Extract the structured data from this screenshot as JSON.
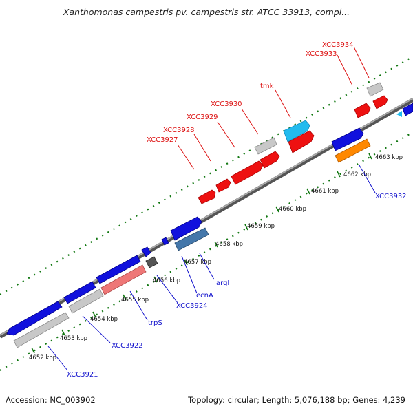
{
  "title": "Xanthomonas campestris pv. campestris str. ATCC 33913, compl...",
  "accession": "Accession: NC_003902",
  "summary": "Topology: circular; Length: 5,076,188 bp; Genes: 4,239",
  "ruler": {
    "unit": "kbp",
    "ticks": [
      "4652 kbp",
      "4653 kbp",
      "4654 kbp",
      "4655 kbp",
      "4656 kbp",
      "4657 kbp",
      "4658 kbp",
      "4659 kbp",
      "4660 kbp",
      "4661 kbp",
      "4662 kbp",
      "4663 kbp"
    ]
  },
  "genes_forward": [
    {
      "label": "XCC3927",
      "color": "#ee1111"
    },
    {
      "label": "XCC3928",
      "color": "#ee1111"
    },
    {
      "label": "XCC3929",
      "color": "#ee1111"
    },
    {
      "label": "XCC3930",
      "color": "#bbbbbb"
    },
    {
      "label": "tmk",
      "color": "#ee1111"
    },
    {
      "label": "XCC3933",
      "color": "#ee1111"
    },
    {
      "label": "XCC3934",
      "color": "#bbbbbb"
    }
  ],
  "genes_reverse": [
    {
      "label": "XCC3921",
      "color": "#bbbbbb"
    },
    {
      "label": "XCC3922",
      "color": "#bbbbbb"
    },
    {
      "label": "trpS",
      "color": "#ee7777"
    },
    {
      "label": "XCC3924",
      "color": "#555555"
    },
    {
      "label": "ecnA",
      "color": "#1111dd"
    },
    {
      "label": "argI",
      "color": "#4477aa"
    },
    {
      "label": "XCC3932",
      "color": "#ff8800"
    }
  ],
  "colors": {
    "backbone": "#888888",
    "forward_label": "#dd1111",
    "reverse_label": "#1111cc",
    "tick_dots": "#117711",
    "cds_blue": "#1111dd",
    "cyan_feature": "#22bbee"
  }
}
